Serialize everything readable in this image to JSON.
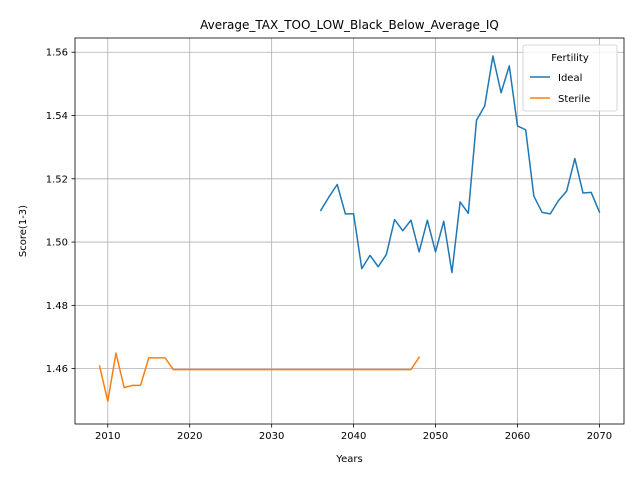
{
  "chart_data": {
    "type": "line",
    "title": "Average_TAX_TOO_LOW_Black_Below_Average_IQ",
    "xlabel": "Years",
    "ylabel": "Score(1-3)",
    "xlim": [
      2006,
      2073
    ],
    "ylim": [
      1.4425,
      1.5645
    ],
    "xticks": [
      2010,
      2020,
      2030,
      2040,
      2050,
      2060,
      2070
    ],
    "yticks": [
      1.46,
      1.48,
      1.5,
      1.52,
      1.54,
      1.56
    ],
    "ytick_labels": [
      "1.46",
      "1.48",
      "1.50",
      "1.52",
      "1.54",
      "1.56"
    ],
    "grid": true,
    "legend": {
      "title": "Fertility",
      "placement": "top-right"
    },
    "series": [
      {
        "name": "Ideal",
        "color": "#1f77b4",
        "x": [
          2036,
          2037,
          2038,
          2039,
          2040,
          2041,
          2042,
          2043,
          2044,
          2045,
          2046,
          2047,
          2048,
          2049,
          2050,
          2051,
          2052,
          2053,
          2054,
          2055,
          2056,
          2057,
          2058,
          2059,
          2060,
          2061,
          2062,
          2063,
          2064,
          2065,
          2066,
          2067,
          2068,
          2069,
          2070
        ],
        "y": [
          1.51,
          1.5143,
          1.5182,
          1.5089,
          1.5089,
          1.4916,
          1.4958,
          1.4922,
          1.4961,
          1.5071,
          1.5036,
          1.5069,
          1.4969,
          1.5069,
          1.4969,
          1.5066,
          1.4904,
          1.5127,
          1.5091,
          1.5385,
          1.543,
          1.5588,
          1.5472,
          1.5557,
          1.5367,
          1.5355,
          1.5145,
          1.5094,
          1.5089,
          1.5131,
          1.5161,
          1.5264,
          1.5155,
          1.5157,
          1.5095
        ]
      },
      {
        "name": "Sterile",
        "color": "#ff7f0e",
        "x": [
          2009,
          2010,
          2011,
          2012,
          2013,
          2014,
          2015,
          2016,
          2017,
          2018,
          2019,
          2020,
          2021,
          2022,
          2023,
          2024,
          2025,
          2026,
          2027,
          2028,
          2029,
          2030,
          2031,
          2032,
          2033,
          2034,
          2035,
          2036,
          2037,
          2038,
          2039,
          2040,
          2041,
          2042,
          2043,
          2044,
          2045,
          2046,
          2047,
          2048
        ],
        "y": [
          1.4608,
          1.4497,
          1.4649,
          1.454,
          1.4547,
          1.4547,
          1.4634,
          1.4634,
          1.4634,
          1.4597,
          1.4597,
          1.4597,
          1.4597,
          1.4597,
          1.4597,
          1.4597,
          1.4597,
          1.4597,
          1.4597,
          1.4597,
          1.4597,
          1.4597,
          1.4597,
          1.4597,
          1.4597,
          1.4597,
          1.4597,
          1.4597,
          1.4597,
          1.4597,
          1.4597,
          1.4597,
          1.4597,
          1.4597,
          1.4597,
          1.4597,
          1.4597,
          1.4597,
          1.4597,
          1.4636
        ]
      }
    ]
  }
}
